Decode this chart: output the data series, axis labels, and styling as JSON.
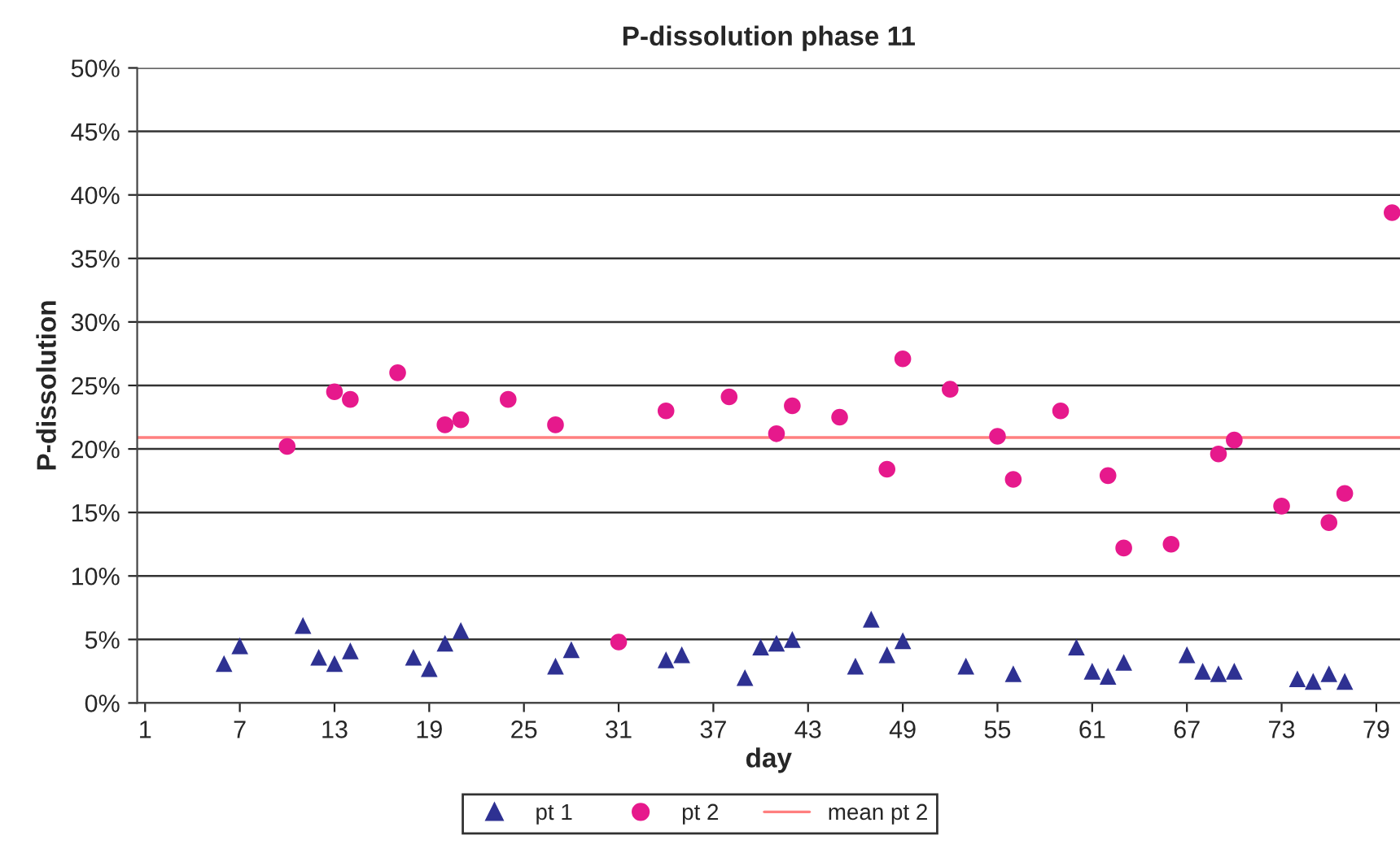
{
  "chart_data": {
    "type": "scatter",
    "title": "P-dissolution phase 11",
    "xlabel": "day",
    "ylabel": "P-dissolution",
    "xlim": [
      0.5,
      80.5
    ],
    "xticks": [
      1,
      7,
      13,
      19,
      25,
      31,
      37,
      43,
      49,
      55,
      61,
      67,
      73,
      79
    ],
    "ylim": [
      0,
      50
    ],
    "yticks": [
      {
        "value": 0,
        "label": "0%"
      },
      {
        "value": 5,
        "label": "5%"
      },
      {
        "value": 10,
        "label": "10%"
      },
      {
        "value": 15,
        "label": "15%"
      },
      {
        "value": 20,
        "label": "20%"
      },
      {
        "value": 25,
        "label": "25%"
      },
      {
        "value": 30,
        "label": "30%"
      },
      {
        "value": 35,
        "label": "35%"
      },
      {
        "value": 40,
        "label": "40%"
      },
      {
        "value": 45,
        "label": "45%"
      },
      {
        "value": 50,
        "label": "50%"
      }
    ],
    "grid": "y",
    "legend": "bottom",
    "series": [
      {
        "name": "pt 1",
        "color": "#2e3192",
        "marker": "triangle",
        "x": [
          6,
          7,
          11,
          12,
          13,
          14,
          18,
          19,
          20,
          21,
          27,
          28,
          34,
          35,
          39,
          40,
          41,
          42,
          46,
          47,
          48,
          49,
          53,
          56,
          60,
          61,
          62,
          63,
          67,
          68,
          69,
          70,
          74,
          75,
          76,
          77
        ],
        "values": [
          3.1,
          4.5,
          6.1,
          3.6,
          3.1,
          4.1,
          3.6,
          2.7,
          4.7,
          5.7,
          2.9,
          4.2,
          3.4,
          3.8,
          2.0,
          4.4,
          4.7,
          5.0,
          2.9,
          6.6,
          3.8,
          4.9,
          2.9,
          2.3,
          4.4,
          2.5,
          2.1,
          3.2,
          3.8,
          2.5,
          2.3,
          2.5,
          1.9,
          1.7,
          2.3,
          1.7
        ]
      },
      {
        "name": "pt 2",
        "color": "#e6198c",
        "marker": "circle",
        "x": [
          10,
          13,
          14,
          17,
          20,
          21,
          24,
          27,
          31,
          34,
          38,
          41,
          42,
          45,
          48,
          49,
          52,
          55,
          56,
          59,
          62,
          63,
          66,
          69,
          70,
          73,
          76,
          77,
          80
        ],
        "values": [
          20.2,
          24.5,
          23.9,
          26.0,
          21.9,
          22.3,
          23.9,
          21.9,
          4.8,
          23.0,
          24.1,
          21.2,
          23.4,
          22.5,
          18.4,
          27.1,
          24.7,
          21.0,
          17.6,
          23.0,
          17.9,
          12.2,
          12.5,
          19.6,
          20.7,
          15.5,
          14.2,
          16.5,
          38.6
        ]
      }
    ],
    "ref_lines": [
      {
        "axis": "y",
        "value": 20.9,
        "label": "mean pt 2",
        "color": "#ff7f7f",
        "line_style": "solid"
      }
    ]
  }
}
